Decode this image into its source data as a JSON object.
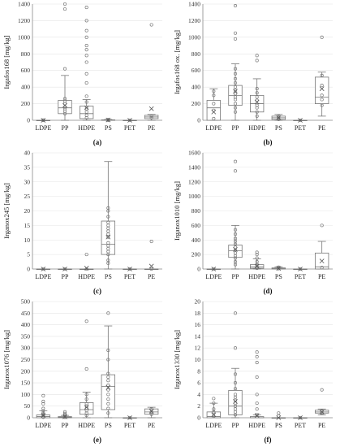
{
  "chart_data": [
    {
      "type": "box",
      "panel_label": "(a)",
      "ylabel": "Irgafos168 [mg/kg]",
      "ylim": [
        0,
        1400
      ],
      "yticks": [
        0,
        200,
        400,
        600,
        800,
        1000,
        1200,
        1400
      ],
      "categories": [
        "LDPE",
        "PP",
        "HDPE",
        "PS",
        "PET",
        "PE"
      ],
      "boxes": [
        {
          "q1": 0,
          "median": 0,
          "q3": 0,
          "whisker_low": 0,
          "whisker_high": 0,
          "mean": 0,
          "points": [
            0,
            2
          ]
        },
        {
          "q1": 80,
          "median": 150,
          "q3": 240,
          "whisker_low": 0,
          "whisker_high": 540,
          "mean": 180,
          "points": [
            80,
            110,
            140,
            160,
            200,
            230,
            260,
            620,
            1340,
            1400
          ]
        },
        {
          "q1": 20,
          "median": 80,
          "q3": 170,
          "whisker_low": 0,
          "whisker_high": 250,
          "mean": 150,
          "points": [
            30,
            60,
            100,
            140,
            220,
            290,
            450,
            560,
            700,
            780,
            850,
            900,
            1000,
            1080,
            1200,
            1360
          ]
        },
        {
          "q1": 0,
          "median": 2,
          "q3": 5,
          "whisker_low": 0,
          "whisker_high": 10,
          "mean": 4,
          "points": [
            1,
            4,
            8
          ]
        },
        {
          "q1": 0,
          "median": 0,
          "q3": 0,
          "whisker_low": 0,
          "whisker_high": 0,
          "mean": 0,
          "points": [
            0
          ]
        },
        {
          "q1": 20,
          "median": 40,
          "q3": 60,
          "whisker_low": 0,
          "whisker_high": 70,
          "mean": 140,
          "points": [
            30,
            50,
            1150
          ]
        }
      ]
    },
    {
      "type": "box",
      "panel_label": "(b)",
      "ylabel": "Irgafos168 ox. [mg/kg]",
      "ylim": [
        0,
        1400
      ],
      "yticks": [
        0,
        200,
        400,
        600,
        800,
        1000,
        1200,
        1400
      ],
      "categories": [
        "LDPE",
        "PP",
        "HDPE",
        "PS",
        "PET",
        "PE"
      ],
      "boxes": [
        {
          "q1": 0,
          "median": 150,
          "q3": 240,
          "whisker_low": 0,
          "whisker_high": 380,
          "mean": 100,
          "points": [
            20,
            120,
            200,
            300,
            350
          ]
        },
        {
          "q1": 180,
          "median": 300,
          "q3": 420,
          "whisker_low": 0,
          "whisker_high": 680,
          "mean": 350,
          "points": [
            100,
            150,
            200,
            250,
            280,
            320,
            360,
            400,
            450,
            500,
            560,
            620,
            980,
            1050,
            1380
          ]
        },
        {
          "q1": 100,
          "median": 200,
          "q3": 300,
          "whisker_low": 0,
          "whisker_high": 500,
          "mean": 220,
          "points": [
            50,
            100,
            150,
            180,
            240,
            280,
            330,
            380,
            720,
            780
          ]
        },
        {
          "q1": 10,
          "median": 30,
          "q3": 50,
          "whisker_low": 0,
          "whisker_high": 70,
          "mean": 30,
          "points": [
            10,
            30,
            50
          ]
        },
        {
          "q1": 0,
          "median": 0,
          "q3": 0,
          "whisker_low": 0,
          "whisker_high": 0,
          "mean": 0,
          "points": [
            0
          ]
        },
        {
          "q1": 200,
          "median": 280,
          "q3": 520,
          "whisker_low": 50,
          "whisker_high": 580,
          "mean": 380,
          "points": [
            180,
            250,
            300,
            420,
            540,
            1000
          ]
        }
      ]
    },
    {
      "type": "box",
      "panel_label": "(c)",
      "ylabel": "Irganox245 [mg/kg]",
      "ylim": [
        0,
        40
      ],
      "yticks": [
        0,
        5,
        10,
        15,
        20,
        25,
        30,
        35,
        40
      ],
      "categories": [
        "LDPE",
        "PP",
        "HDPE",
        "PS",
        "PET",
        "PE"
      ],
      "boxes": [
        {
          "q1": 0,
          "median": 0,
          "q3": 0,
          "whisker_low": 0,
          "whisker_high": 0,
          "mean": 0,
          "points": [
            0
          ]
        },
        {
          "q1": 0,
          "median": 0,
          "q3": 0,
          "whisker_low": 0,
          "whisker_high": 0,
          "mean": 0,
          "points": [
            0
          ]
        },
        {
          "q1": 0,
          "median": 0,
          "q3": 0,
          "whisker_low": 0,
          "whisker_high": 0,
          "mean": 0.3,
          "points": [
            0,
            5
          ]
        },
        {
          "q1": 5,
          "median": 8.5,
          "q3": 16.5,
          "whisker_low": 0,
          "whisker_high": 37,
          "mean": 11,
          "points": [
            2,
            3,
            5,
            6,
            7,
            8,
            9,
            11,
            12,
            13,
            14,
            15,
            16,
            18,
            20,
            21
          ]
        },
        {
          "q1": 0,
          "median": 0,
          "q3": 0,
          "whisker_low": 0,
          "whisker_high": 0,
          "mean": 0,
          "points": [
            0
          ]
        },
        {
          "q1": 0,
          "median": 0,
          "q3": 0,
          "whisker_low": 0,
          "whisker_high": 0,
          "mean": 1,
          "points": [
            0,
            9.5
          ]
        }
      ]
    },
    {
      "type": "box",
      "panel_label": "(d)",
      "ylabel": "Irganox1010 [mg/kg]",
      "ylim": [
        0,
        1600
      ],
      "yticks": [
        0,
        200,
        400,
        600,
        800,
        1000,
        1200,
        1400,
        1600
      ],
      "categories": [
        "LDPE",
        "PP",
        "HDPE",
        "PS",
        "PET",
        "PE"
      ],
      "boxes": [
        {
          "q1": 0,
          "median": 0,
          "q3": 0,
          "whisker_low": 0,
          "whisker_high": 0,
          "mean": 0,
          "points": [
            0
          ]
        },
        {
          "q1": 160,
          "median": 250,
          "q3": 330,
          "whisker_low": 0,
          "whisker_high": 600,
          "mean": 270,
          "points": [
            60,
            100,
            150,
            180,
            220,
            260,
            300,
            340,
            380,
            420,
            480,
            540,
            1350,
            1480
          ]
        },
        {
          "q1": 10,
          "median": 30,
          "q3": 60,
          "whisker_low": 0,
          "whisker_high": 140,
          "mean": 40,
          "points": [
            10,
            30,
            60,
            100,
            150,
            200,
            230
          ]
        },
        {
          "q1": 0,
          "median": 5,
          "q3": 15,
          "whisker_low": 0,
          "whisker_high": 30,
          "mean": 8,
          "points": [
            5,
            15,
            25
          ]
        },
        {
          "q1": 0,
          "median": 0,
          "q3": 0,
          "whisker_low": 0,
          "whisker_high": 0,
          "mean": 0,
          "points": [
            0
          ]
        },
        {
          "q1": 0,
          "median": 30,
          "q3": 220,
          "whisker_low": 0,
          "whisker_high": 380,
          "mean": 110,
          "points": [
            20,
            600
          ]
        }
      ]
    },
    {
      "type": "box",
      "panel_label": "(e)",
      "ylabel": "Irganox1076 [mg/kg]",
      "ylim": [
        0,
        500
      ],
      "yticks": [
        0,
        50,
        100,
        150,
        200,
        250,
        300,
        350,
        400,
        450,
        500
      ],
      "categories": [
        "LDPE",
        "PP",
        "HDPE",
        "PS",
        "PET",
        "PE"
      ],
      "boxes": [
        {
          "q1": 0,
          "median": 5,
          "q3": 12,
          "whisker_low": 0,
          "whisker_high": 30,
          "mean": 10,
          "points": [
            2,
            5,
            10,
            15,
            20,
            30,
            40,
            60,
            70,
            95
          ]
        },
        {
          "q1": 0,
          "median": 2,
          "q3": 5,
          "whisker_low": 0,
          "whisker_high": 10,
          "mean": 4,
          "points": [
            2,
            6,
            12,
            18,
            25
          ]
        },
        {
          "q1": 15,
          "median": 35,
          "q3": 65,
          "whisker_low": 0,
          "whisker_high": 110,
          "mean": 45,
          "points": [
            10,
            20,
            30,
            40,
            50,
            60,
            80,
            100,
            210,
            415
          ]
        },
        {
          "q1": 35,
          "median": 135,
          "q3": 185,
          "whisker_low": 0,
          "whisker_high": 395,
          "mean": 130,
          "points": [
            20,
            40,
            60,
            80,
            100,
            120,
            140,
            160,
            175,
            190,
            250,
            290,
            450
          ]
        },
        {
          "q1": 0,
          "median": 0,
          "q3": 0,
          "whisker_low": 0,
          "whisker_high": 0,
          "mean": 0,
          "points": [
            0
          ]
        },
        {
          "q1": 15,
          "median": 25,
          "q3": 38,
          "whisker_low": 0,
          "whisker_high": 45,
          "mean": 28,
          "points": [
            15,
            25,
            38
          ]
        }
      ]
    },
    {
      "type": "box",
      "panel_label": "(f)",
      "ylabel": "Irganox1330 [mg/kg]",
      "ylim": [
        0,
        20
      ],
      "yticks": [
        0,
        2,
        4,
        6,
        8,
        10,
        12,
        14,
        16,
        18,
        20
      ],
      "categories": [
        "LDPE",
        "PP",
        "HDPE",
        "PS",
        "PET",
        "PE"
      ],
      "boxes": [
        {
          "q1": 0,
          "median": 0.2,
          "q3": 1,
          "whisker_low": 0,
          "whisker_high": 2.5,
          "mean": 0.5,
          "points": [
            0.3,
            1,
            1.5,
            2.5,
            3.3
          ]
        },
        {
          "q1": 0.5,
          "median": 2,
          "q3": 4.7,
          "whisker_low": 0,
          "whisker_high": 8.5,
          "mean": 2.8,
          "points": [
            0.5,
            1,
            1.5,
            2,
            2.5,
            3,
            3.5,
            4,
            5,
            6,
            7.5,
            12,
            18
          ]
        },
        {
          "q1": 0,
          "median": 0,
          "q3": 0.2,
          "whisker_low": 0,
          "whisker_high": 0.5,
          "mean": 0.4,
          "points": [
            0.5,
            1.5,
            2.5,
            4,
            7,
            9.5,
            10.5,
            11.3
          ]
        },
        {
          "q1": 0,
          "median": 0,
          "q3": 0,
          "whisker_low": 0,
          "whisker_high": 0,
          "mean": 0,
          "points": [
            0.3,
            0.8
          ]
        },
        {
          "q1": 0,
          "median": 0,
          "q3": 0,
          "whisker_low": 0,
          "whisker_high": 0,
          "mean": 0,
          "points": [
            0
          ]
        },
        {
          "q1": 0.8,
          "median": 1,
          "q3": 1.3,
          "whisker_low": 0.5,
          "whisker_high": 1.5,
          "mean": 1,
          "points": [
            0.8,
            1.2,
            4.8
          ]
        }
      ]
    }
  ]
}
